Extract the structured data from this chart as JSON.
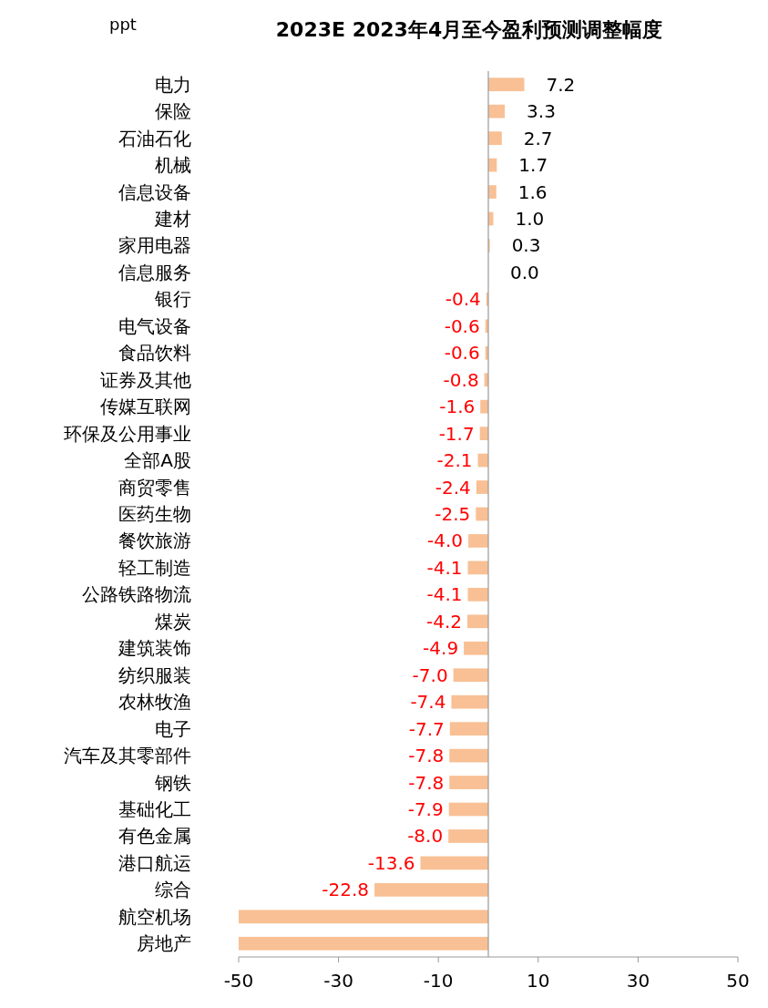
{
  "chart_data": {
    "type": "bar",
    "orientation": "horizontal",
    "title": "2023E 2023年4月至今盈利预测调整幅度",
    "annotations": [
      "ppt"
    ],
    "categories": [
      "电力",
      "保险",
      "石油石化",
      "机械",
      "信息设备",
      "建材",
      "家用电器",
      "信息服务",
      "银行",
      "电气设备",
      "食品饮料",
      "证券及其他",
      "传媒互联网",
      "环保及公用事业",
      "全部A股",
      "商贸零售",
      "医药生物",
      "餐饮旅游",
      "轻工制造",
      "公路铁路物流",
      "煤炭",
      "建筑装饰",
      "纺织服装",
      "农林牧渔",
      "电子",
      "汽车及其零部件",
      "钢铁",
      "基础化工",
      "有色金属",
      "港口航运",
      "综合",
      "航空机场",
      "房地产"
    ],
    "values": [
      7.2,
      3.3,
      2.7,
      1.7,
      1.6,
      1.0,
      0.3,
      0.0,
      -0.4,
      -0.6,
      -0.6,
      -0.8,
      -1.6,
      -1.7,
      -2.1,
      -2.4,
      -2.5,
      -4.0,
      -4.1,
      -4.1,
      -4.2,
      -4.9,
      -7.0,
      -7.4,
      -7.7,
      -7.8,
      -7.8,
      -7.9,
      -8.0,
      -13.6,
      -22.8,
      -50,
      -50
    ],
    "value_labels": [
      "7.2",
      "3.3",
      "2.7",
      "1.7",
      "1.6",
      "1.0",
      "0.3",
      "0.0",
      "-0.4",
      "-0.6",
      "-0.6",
      "-0.8",
      "-1.6",
      "-1.7",
      "-2.1",
      "-2.4",
      "-2.5",
      "-4.0",
      "-4.1",
      "-4.1",
      "-4.2",
      "-4.9",
      "-7.0",
      "-7.4",
      "-7.7",
      "-7.8",
      "-7.8",
      "-7.9",
      "-8.0",
      "-13.6",
      "-22.8",
      null,
      null
    ],
    "color": "#f8c094",
    "xlim": [
      -50,
      50
    ],
    "xticks": [
      -50,
      -30,
      -10,
      10,
      30,
      50
    ]
  }
}
